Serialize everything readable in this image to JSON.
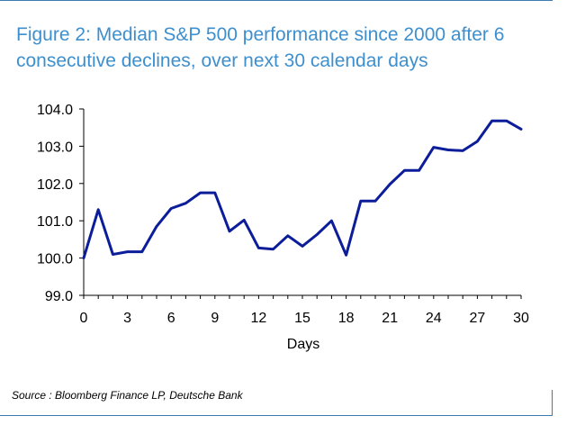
{
  "figure": {
    "title": "Figure 2: Median S&P 500 performance since 2000 after 6 consecutive declines, over next 30 calendar days",
    "source": "Source : Bloomberg Finance LP, Deutsche Bank"
  },
  "colors": {
    "line": "#0c1d9a",
    "accent": "#3d8fce",
    "rule": "#3d7cb0"
  },
  "chart_data": {
    "type": "line",
    "title": "Figure 2: Median S&P 500 performance since 2000 after 6 consecutive declines, over next 30 calendar days",
    "xlabel": "Days",
    "ylabel": "",
    "xlim": [
      0,
      30
    ],
    "ylim": [
      99.0,
      104.0
    ],
    "grid": false,
    "x_ticks": [
      0,
      3,
      6,
      9,
      12,
      15,
      18,
      21,
      24,
      27,
      30
    ],
    "y_ticks": [
      "99.0",
      "100.0",
      "101.0",
      "102.0",
      "103.0",
      "104.0"
    ],
    "series": [
      {
        "x": [
          0,
          1,
          2,
          3,
          4,
          5,
          6,
          7,
          8,
          9,
          10,
          11,
          12,
          13,
          14,
          15,
          16,
          17,
          18,
          19,
          20,
          21,
          22,
          23,
          24,
          25,
          26,
          27,
          28,
          29,
          30
        ],
        "values": [
          100.0,
          101.3,
          100.1,
          100.17,
          100.17,
          100.85,
          101.33,
          101.47,
          101.75,
          101.75,
          100.72,
          101.02,
          100.27,
          100.24,
          100.6,
          100.32,
          100.63,
          101.0,
          100.08,
          101.53,
          101.53,
          101.98,
          102.35,
          102.35,
          102.97,
          102.9,
          102.88,
          103.13,
          103.68,
          103.68,
          103.46
        ]
      }
    ]
  }
}
